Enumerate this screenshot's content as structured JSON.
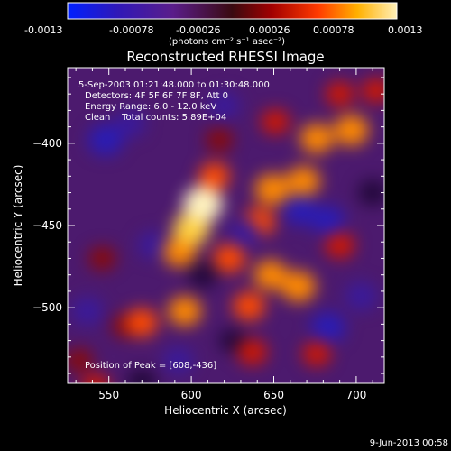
{
  "colorbar": {
    "ticks": [
      "-0.0013",
      "-0.00078",
      "-0.00026",
      "0.00026",
      "0.00078",
      "0.0013"
    ],
    "unit_label": "(photons cm⁻² s⁻¹ asec⁻²)"
  },
  "chart_data": {
    "type": "heatmap",
    "title": "Reconstructed RHESSI Image",
    "annotations": {
      "time_range": "5-Sep-2003 01:21:48.000 to 01:30:48.000",
      "detectors": "Detectors: 4F 5F 6F 7F 8F, Att 0",
      "energy": "Energy Range: 6.0 - 12.0 keV",
      "clean": "Clean    Total counts: 5.89E+04",
      "peak": "Position of Peak = [608,-436]"
    },
    "xlabel": "Heliocentric X (arcsec)",
    "ylabel": "Heliocentric Y (arcsec)",
    "xlim": [
      525,
      717
    ],
    "ylim": [
      -546,
      -354
    ],
    "xticks": [
      550,
      600,
      650,
      700
    ],
    "yticks": [
      -400,
      -450,
      -500
    ],
    "zlim": [
      -0.0013,
      0.0013
    ],
    "peak_position": [
      608,
      -436
    ],
    "sources": [
      {
        "x": 607,
        "y": -437,
        "value": 0.0013
      },
      {
        "x": 600,
        "y": -452,
        "value": 0.0011
      },
      {
        "x": 593,
        "y": -466,
        "value": 0.0008
      },
      {
        "x": 614,
        "y": -420,
        "value": 0.0006
      },
      {
        "x": 649,
        "y": -428,
        "value": 0.0009
      },
      {
        "x": 668,
        "y": -423,
        "value": 0.0008
      },
      {
        "x": 641,
        "y": -448,
        "value": 0.0007
      },
      {
        "x": 676,
        "y": -397,
        "value": 0.0008
      },
      {
        "x": 697,
        "y": -392,
        "value": 0.0009
      },
      {
        "x": 651,
        "y": -387,
        "value": 0.0004
      },
      {
        "x": 617,
        "y": -398,
        "value": 0.0003
      },
      {
        "x": 623,
        "y": -470,
        "value": 0.0007
      },
      {
        "x": 648,
        "y": -480,
        "value": 0.0008
      },
      {
        "x": 665,
        "y": -487,
        "value": 0.0009
      },
      {
        "x": 690,
        "y": -462,
        "value": 0.0005
      },
      {
        "x": 596,
        "y": -502,
        "value": 0.0008
      },
      {
        "x": 635,
        "y": -499,
        "value": 0.0007
      },
      {
        "x": 570,
        "y": -509,
        "value": 0.0007
      },
      {
        "x": 560,
        "y": -511,
        "value": 0.0003
      },
      {
        "x": 637,
        "y": -527,
        "value": 0.0005
      },
      {
        "x": 676,
        "y": -528,
        "value": 0.0004
      },
      {
        "x": 542,
        "y": -548,
        "value": 0.0004
      },
      {
        "x": 532,
        "y": -532,
        "value": 0.0003
      },
      {
        "x": 712,
        "y": -368,
        "value": 0.0004
      },
      {
        "x": 690,
        "y": -370,
        "value": 0.0004
      },
      {
        "x": 546,
        "y": -470,
        "value": 0.0003
      },
      {
        "x": 548,
        "y": -398,
        "value": -0.0009
      },
      {
        "x": 563,
        "y": -388,
        "value": -0.0006
      },
      {
        "x": 666,
        "y": -441,
        "value": -0.0008
      },
      {
        "x": 683,
        "y": -447,
        "value": -0.0008
      },
      {
        "x": 632,
        "y": -455,
        "value": -0.0007
      },
      {
        "x": 683,
        "y": -512,
        "value": -0.0009
      },
      {
        "x": 703,
        "y": -493,
        "value": -0.0007
      },
      {
        "x": 537,
        "y": -502,
        "value": -0.0007
      },
      {
        "x": 577,
        "y": -462,
        "value": -0.0006
      },
      {
        "x": 607,
        "y": -480,
        "value": -0.0005
      },
      {
        "x": 592,
        "y": -532,
        "value": -0.0006
      },
      {
        "x": 570,
        "y": -545,
        "value": -0.0005
      },
      {
        "x": 620,
        "y": -377,
        "value": -0.0006
      },
      {
        "x": 625,
        "y": -520,
        "value": -0.0003
      },
      {
        "x": 710,
        "y": -430,
        "value": -0.0005
      }
    ]
  },
  "footer": {
    "timestamp": "9-Jun-2013 00:58"
  }
}
